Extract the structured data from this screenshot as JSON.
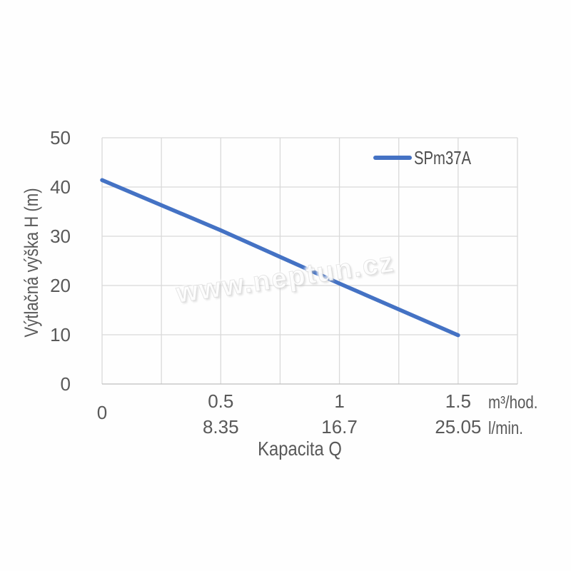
{
  "chart_data": {
    "type": "line",
    "title": "",
    "x": [
      0,
      0.5,
      1,
      1.5
    ],
    "series": [
      {
        "name": "SPm37A",
        "color": "#4472C4",
        "values": [
          41.4,
          31.2,
          20.4,
          9.9
        ]
      }
    ],
    "xlabel": "Kapacita Q",
    "ylabel": "Výtlačná výška H (m)",
    "xlim": [
      0,
      1.75
    ],
    "ylim": [
      0,
      50
    ],
    "x_grid_step": 0.25,
    "y_grid_step": 10,
    "grid": true,
    "legend_position": "top-right-inside",
    "x_ticks_primary": [
      {
        "value": 0,
        "label": "0"
      },
      {
        "value": 0.5,
        "label": "0.5"
      },
      {
        "value": 1,
        "label": "1"
      },
      {
        "value": 1.5,
        "label": "1.5"
      }
    ],
    "x_ticks_secondary": [
      {
        "value": 0.5,
        "label": "8.35"
      },
      {
        "value": 1,
        "label": "16.7"
      },
      {
        "value": 1.5,
        "label": "25.05"
      }
    ],
    "x_unit_primary": "m³/hod.",
    "x_unit_secondary": "l/min.",
    "y_ticks": [
      {
        "value": 0,
        "label": "0"
      },
      {
        "value": 10,
        "label": "10"
      },
      {
        "value": 20,
        "label": "20"
      },
      {
        "value": 30,
        "label": "30"
      },
      {
        "value": 40,
        "label": "40"
      },
      {
        "value": 50,
        "label": "50"
      }
    ]
  },
  "legend": {
    "label": "SPm37A"
  },
  "watermark": {
    "text": "www.neptun.cz"
  },
  "colors": {
    "line": "#4472C4",
    "grid": "#d9d9d9",
    "axis_line": "#bfbfbf",
    "axis_text": "#595959",
    "background": "#ffffff"
  }
}
